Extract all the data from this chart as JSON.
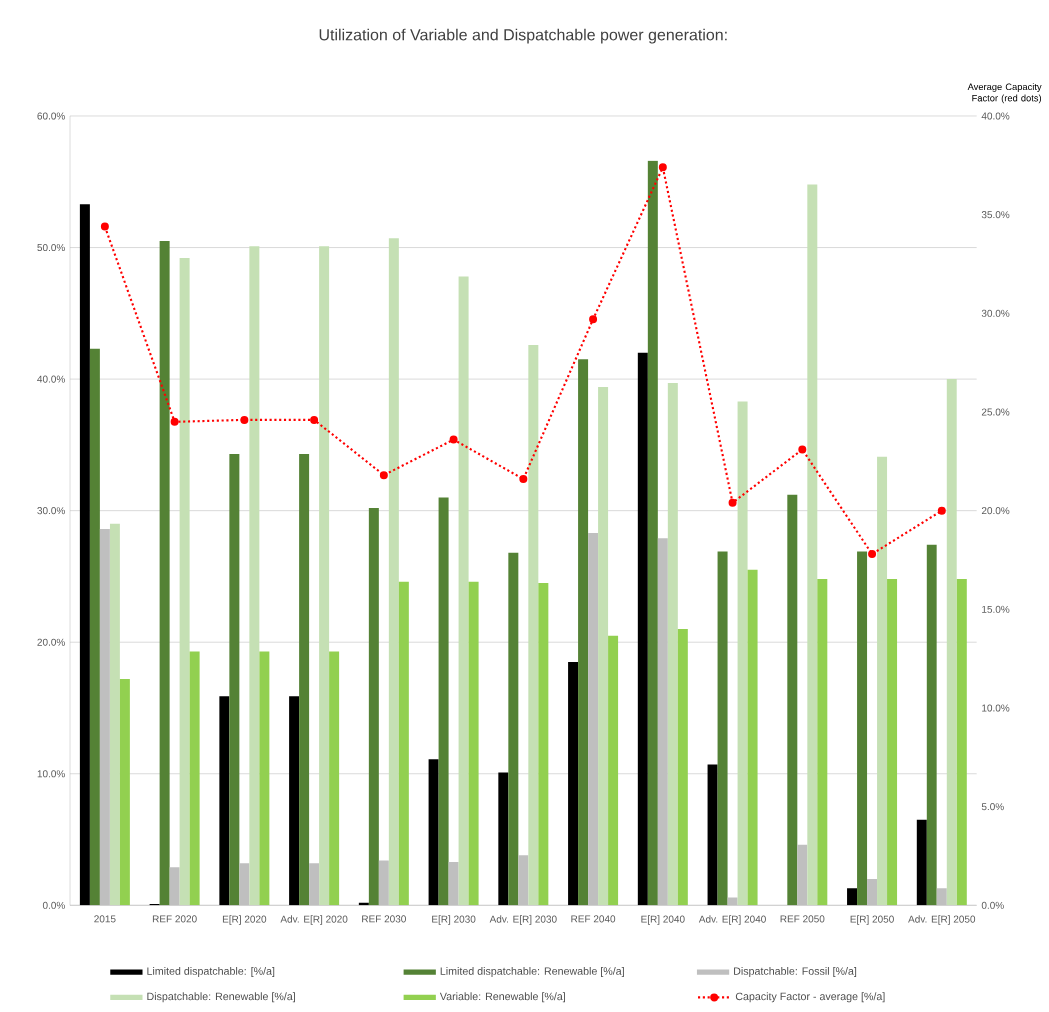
{
  "chart_data": {
    "type": "bar",
    "title": "Utilization of Variable and Dispatchable power generation:",
    "y2label": "Average  Capacity Factor (red dots)",
    "categories": [
      "2015",
      "REF 2020",
      "E[R] 2020",
      "Adv. E[R] 2020",
      "REF 2030",
      "E[R] 2030",
      "Adv. E[R] 2030",
      "REF 2040",
      "E[R] 2040",
      "Adv. E[R] 2040",
      "REF 2050",
      "E[R] 2050",
      "Adv. E[R] 2050"
    ],
    "series": [
      {
        "name": "Limited dispatchable:  [%/a]",
        "color": "#000000",
        "values": [
          53.3,
          0.1,
          15.9,
          15.9,
          0.2,
          11.1,
          10.1,
          18.5,
          42.0,
          10.7,
          0,
          1.3,
          6.5
        ]
      },
      {
        "name": "Limited dispatchable: Renewable  [%/a]",
        "color": "#548235",
        "values": [
          42.3,
          50.5,
          34.3,
          34.3,
          30.2,
          31.0,
          26.8,
          41.5,
          56.6,
          26.9,
          31.2,
          26.9,
          27.4
        ]
      },
      {
        "name": "Dispatchable: Fossil [%/a]",
        "color": "#bfbfbf",
        "values": [
          28.6,
          2.9,
          3.2,
          3.2,
          3.4,
          3.3,
          3.8,
          28.3,
          27.9,
          0.6,
          4.6,
          2.0,
          1.3
        ]
      },
      {
        "name": "Dispatchable: Renewable [%/a]",
        "color": "#c5e0b4",
        "values": [
          29.0,
          49.2,
          50.1,
          50.1,
          50.7,
          47.8,
          42.6,
          39.4,
          39.7,
          38.3,
          54.8,
          34.1,
          40.0
        ]
      },
      {
        "name": "Variable: Renewable [%/a]",
        "color": "#92d050",
        "values": [
          17.2,
          19.3,
          19.3,
          19.3,
          24.6,
          24.6,
          24.5,
          20.5,
          21.0,
          25.5,
          24.8,
          24.8,
          24.8
        ]
      },
      {
        "name": "Capacity Factor - average [%/a]",
        "color": "#ff0000",
        "type": "line",
        "axis": "y2",
        "marker": "circle",
        "line_style": "dotted",
        "values": [
          34.4,
          24.5,
          24.6,
          24.6,
          21.8,
          23.6,
          21.6,
          29.7,
          37.4,
          20.4,
          23.1,
          17.8,
          20.0
        ]
      }
    ],
    "ylim": [
      0,
      60
    ],
    "yticks": [
      {
        "value": 0,
        "label": "0.0%"
      },
      {
        "value": 10,
        "label": "10.0%"
      },
      {
        "value": 20,
        "label": "20.0%"
      },
      {
        "value": 30,
        "label": "30.0%"
      },
      {
        "value": 40,
        "label": "40.0%"
      },
      {
        "value": 50,
        "label": "50.0%"
      },
      {
        "value": 60,
        "label": "60.0%"
      }
    ],
    "y2lim": [
      0,
      40
    ],
    "y2ticks": [
      {
        "value": 0,
        "label": "0.0%"
      },
      {
        "value": 5,
        "label": "5.0%"
      },
      {
        "value": 10,
        "label": "10.0%"
      },
      {
        "value": 15,
        "label": "15.0%"
      },
      {
        "value": 20,
        "label": "20.0%"
      },
      {
        "value": 25,
        "label": "25.0%"
      },
      {
        "value": 30,
        "label": "30.0%"
      },
      {
        "value": 35,
        "label": "35.0%"
      },
      {
        "value": 40,
        "label": "40.0%"
      }
    ],
    "grid": "y",
    "legend": "bottom"
  }
}
